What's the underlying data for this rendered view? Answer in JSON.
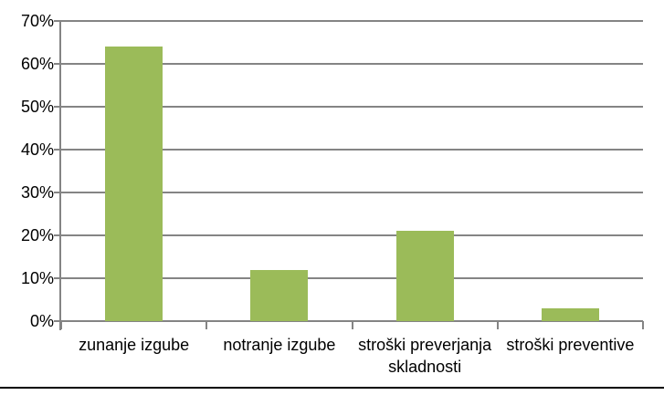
{
  "figure": {
    "background": "#FFFFFF",
    "bottom_rule_color": "#000000"
  },
  "chart_data": {
    "type": "bar",
    "title": "",
    "xlabel": "",
    "ylabel": "",
    "categories": [
      "zunanje izgube",
      "notranje izgube",
      "stroški preverjanja skladnosti",
      "stroški preventive"
    ],
    "values": [
      64,
      12,
      21,
      3
    ],
    "unit": "%",
    "ylim": [
      0,
      70
    ],
    "ytick_step": 10,
    "ytick_labels": [
      "0%",
      "10%",
      "20%",
      "30%",
      "40%",
      "50%",
      "60%",
      "70%"
    ],
    "grid": true,
    "legend": false,
    "bar_color": "#9BBB59",
    "grid_color": "#848484",
    "axis_color": "#848484",
    "label_color": "#000000"
  }
}
